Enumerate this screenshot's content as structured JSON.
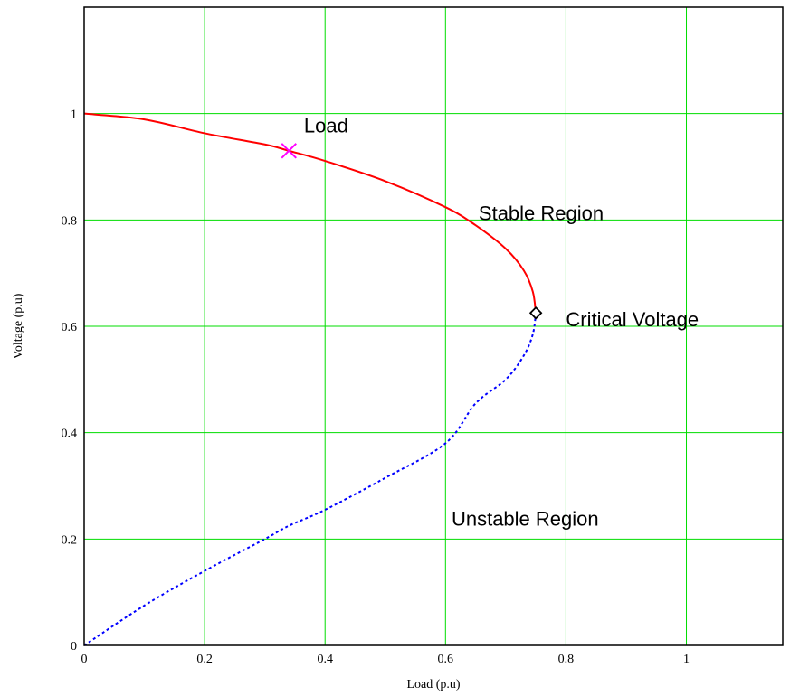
{
  "chart_data": {
    "type": "line",
    "xlabel": "Load (p.u)",
    "ylabel": "Voltage (p.u)",
    "xlim": [
      0,
      1.16
    ],
    "ylim": [
      0,
      1.2
    ],
    "x_ticks": [
      0,
      0.2,
      0.4,
      0.6,
      0.8,
      1
    ],
    "x_tick_labels": [
      "0",
      "0.2",
      "0.4",
      "0.6",
      "0.8",
      "1"
    ],
    "y_ticks": [
      0,
      0.2,
      0.4,
      0.6,
      0.8,
      1
    ],
    "y_tick_labels": [
      "0",
      "0.2",
      "0.4",
      "0.6",
      "0.8",
      "1"
    ],
    "grid": true,
    "colors": {
      "grid": "#00dd00",
      "stable": "#ff0000",
      "unstable": "#0000ff",
      "marker_load": "#ff00ff",
      "marker_critical": "#000000"
    },
    "series": [
      {
        "style": "solid",
        "color": "#ff0000",
        "points": [
          [
            0,
            1.0
          ],
          [
            0.1,
            0.989
          ],
          [
            0.2,
            0.963
          ],
          [
            0.3,
            0.942
          ],
          [
            0.34,
            0.93
          ],
          [
            0.4,
            0.911
          ],
          [
            0.5,
            0.873
          ],
          [
            0.6,
            0.824
          ],
          [
            0.65,
            0.79
          ],
          [
            0.7,
            0.746
          ],
          [
            0.73,
            0.705
          ],
          [
            0.745,
            0.665
          ],
          [
            0.75,
            0.625
          ]
        ]
      },
      {
        "style": "dotted",
        "color": "#0000ff",
        "points": [
          [
            0.75,
            0.625
          ],
          [
            0.745,
            0.585
          ],
          [
            0.73,
            0.545
          ],
          [
            0.7,
            0.5
          ],
          [
            0.65,
            0.455
          ],
          [
            0.6,
            0.38
          ],
          [
            0.5,
            0.315
          ],
          [
            0.4,
            0.255
          ],
          [
            0.34,
            0.225
          ],
          [
            0.3,
            0.2
          ],
          [
            0.2,
            0.14
          ],
          [
            0.1,
            0.075
          ],
          [
            0,
            0
          ]
        ]
      }
    ],
    "markers": [
      {
        "symbol": "x",
        "x": 0.34,
        "y": 0.93,
        "color": "#ff00ff"
      },
      {
        "symbol": "diamond",
        "x": 0.75,
        "y": 0.625,
        "color": "#000000"
      }
    ],
    "annotations": [
      {
        "text": "Load",
        "x": 0.365,
        "y": 0.965
      },
      {
        "text": "Stable Region",
        "x": 0.655,
        "y": 0.8
      },
      {
        "text": "Critical Voltage",
        "x": 0.8,
        "y": 0.6
      },
      {
        "text": "Unstable Region",
        "x": 0.61,
        "y": 0.225
      }
    ]
  }
}
